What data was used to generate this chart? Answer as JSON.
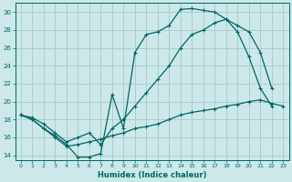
{
  "xlabel": "Humidex (Indice chaleur)",
  "background_color": "#cce8e8",
  "grid_color": "#aacece",
  "line_color": "#006666",
  "xlim": [
    -0.5,
    23.5
  ],
  "ylim": [
    13.5,
    31
  ],
  "yticks": [
    14,
    16,
    18,
    20,
    22,
    24,
    26,
    28,
    30
  ],
  "xticks": [
    0,
    1,
    2,
    3,
    4,
    5,
    6,
    7,
    8,
    9,
    10,
    11,
    12,
    13,
    14,
    15,
    16,
    17,
    18,
    19,
    20,
    21,
    22,
    23
  ],
  "series1_x": [
    0,
    1,
    2,
    3,
    4,
    5,
    6,
    7,
    8,
    9,
    10,
    11,
    12,
    13,
    14,
    15,
    16,
    17,
    18,
    19,
    20,
    21,
    22
  ],
  "series1_y": [
    18.5,
    18.0,
    17.0,
    16.2,
    15.2,
    13.8,
    13.8,
    14.2,
    20.8,
    17.0,
    25.5,
    27.5,
    27.8,
    28.5,
    30.3,
    30.4,
    30.2,
    30.0,
    29.2,
    27.8,
    25.0,
    21.5,
    19.5
  ],
  "series2_x": [
    0,
    1,
    2,
    3,
    4,
    5,
    6,
    7,
    8,
    9,
    10,
    11,
    12,
    13,
    14,
    15,
    16,
    17,
    18,
    19,
    20,
    21,
    22,
    23
  ],
  "series2_y": [
    18.5,
    18.0,
    17.0,
    16.0,
    15.0,
    15.2,
    15.5,
    15.8,
    16.2,
    16.5,
    17.0,
    17.2,
    17.5,
    18.0,
    18.5,
    18.8,
    19.0,
    19.2,
    19.5,
    19.7,
    20.0,
    20.2,
    19.8,
    19.5
  ],
  "series3_x": [
    0,
    1,
    2,
    3,
    4,
    5,
    6,
    7,
    8,
    9,
    10,
    11,
    12,
    13,
    14,
    15,
    16,
    17,
    18,
    19,
    20,
    21,
    22
  ],
  "series3_y": [
    18.5,
    18.2,
    17.5,
    16.5,
    15.5,
    16.0,
    16.5,
    15.2,
    17.0,
    18.0,
    19.5,
    21.0,
    22.5,
    24.0,
    26.0,
    27.5,
    28.0,
    28.8,
    29.2,
    28.5,
    27.8,
    25.5,
    21.5
  ]
}
